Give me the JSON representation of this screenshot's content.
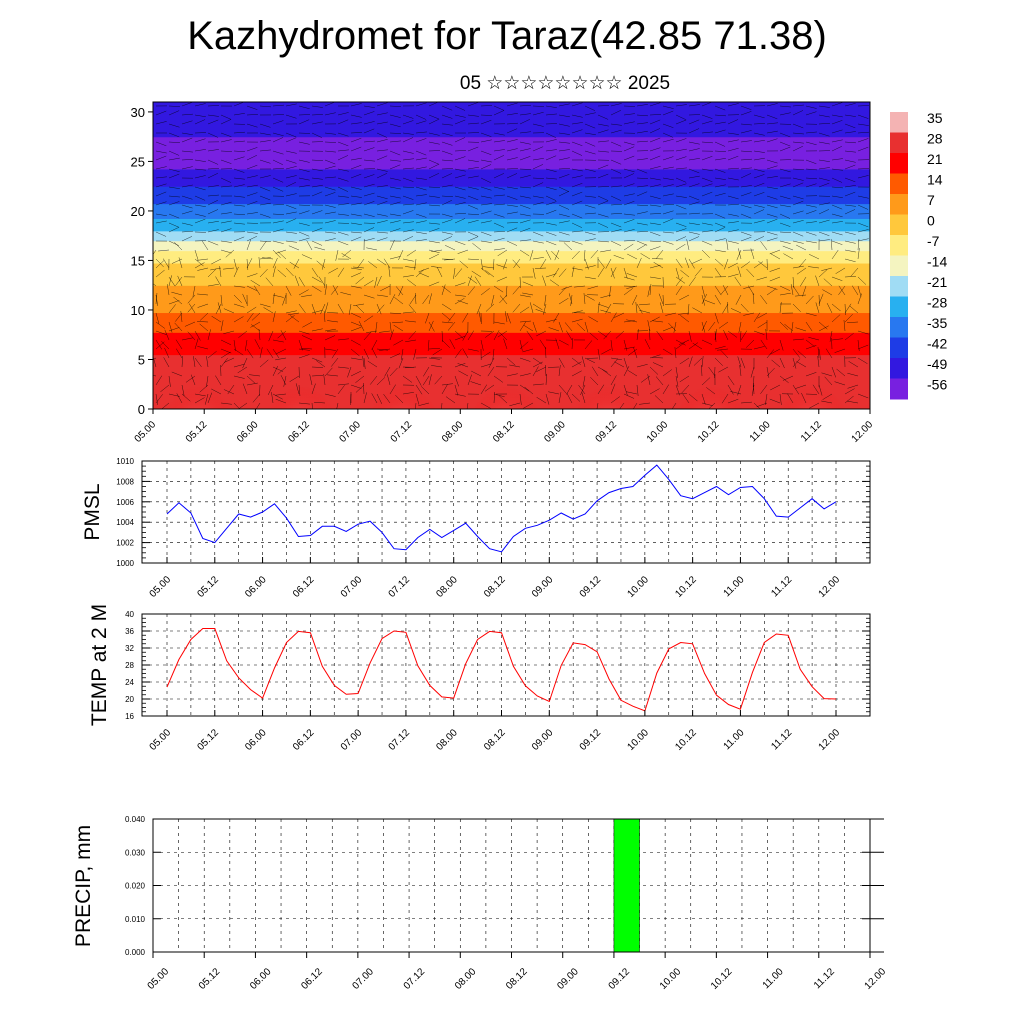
{
  "title": "Kazhydromet for Taraz(42.85 71.38)",
  "subtitle": "05 ☆☆☆☆☆☆☆☆ 2025",
  "time_labels": [
    "05.00",
    "05.12",
    "06.00",
    "06.12",
    "07.00",
    "07.12",
    "08.00",
    "08.12",
    "09.00",
    "09.12",
    "10.00",
    "10.12",
    "11.00",
    "11.12",
    "12.00"
  ],
  "colors": {
    "pmsl": "#0000ff",
    "temp": "#ff0000",
    "precip": "#00ff00"
  },
  "chart_data": [
    {
      "type": "heatmap",
      "title": "",
      "ylabel": "",
      "ylim": [
        0,
        31
      ],
      "yticks": [
        0,
        5,
        10,
        15,
        20,
        25,
        30
      ],
      "x": [
        "05.00",
        "05.12",
        "06.00",
        "06.12",
        "07.00",
        "07.12",
        "08.00",
        "08.12",
        "09.00",
        "09.12",
        "10.00",
        "10.12",
        "11.00",
        "11.12",
        "12.00"
      ],
      "colorbar": {
        "labels": [
          "35",
          "28",
          "21",
          "14",
          "7",
          "0",
          "-7",
          "-14",
          "-21",
          "-28",
          "-35",
          "-42",
          "-49",
          "-56"
        ],
        "colors": [
          "#f4b3b3",
          "#e83030",
          "#ff0000",
          "#ff5a00",
          "#ff9a1a",
          "#ffc83c",
          "#ffec80",
          "#f4f4c0",
          "#a0dcf4",
          "#28b0f0",
          "#2878f0",
          "#1e3ce6",
          "#3218e0",
          "#7820e0"
        ]
      },
      "isotherm_by_level": [
        {
          "level": 0,
          "value": 30
        },
        {
          "level": 5,
          "value": 26
        },
        {
          "level": 10,
          "value": 10
        },
        {
          "level": 14,
          "value": 0
        },
        {
          "level": 16,
          "value": -10
        },
        {
          "level": 18,
          "value": -25
        },
        {
          "level": 21,
          "value": -40
        },
        {
          "level": 25,
          "value": -56
        },
        {
          "level": 28,
          "value": -52
        },
        {
          "level": 31,
          "value": -50
        }
      ],
      "overlay": "wind barbs"
    },
    {
      "type": "line",
      "ylabel": "PMSL",
      "ylim": [
        1000,
        1010
      ],
      "yticks": [
        "1000",
        "1002",
        "1004",
        "1006",
        "1008",
        "1010"
      ],
      "x_start": 0,
      "x_step_hours": 3,
      "series": [
        {
          "values": [
            1004.8,
            1005.9,
            1004.9,
            1002.4,
            1002.0,
            1003.4,
            1004.8,
            1004.5,
            1005.0,
            1005.8,
            1004.4,
            1002.6,
            1002.7,
            1003.6,
            1003.6,
            1003.1,
            1003.8,
            1004.1,
            1003.0,
            1001.4,
            1001.3,
            1002.5,
            1003.3,
            1002.5,
            1003.2,
            1003.9,
            1002.6,
            1001.4,
            1001.1,
            1002.6,
            1003.4,
            1003.7,
            1004.2,
            1004.9,
            1004.3,
            1004.8,
            1006.1,
            1006.9,
            1007.3,
            1007.5,
            1008.6,
            1009.6,
            1008.2,
            1006.6,
            1006.3,
            1006.9,
            1007.5,
            1006.7,
            1007.4,
            1007.5,
            1006.3,
            1004.6,
            1004.5,
            1005.4,
            1006.3,
            1005.3,
            1006.0
          ]
        }
      ]
    },
    {
      "type": "line",
      "ylabel": "TEMP at 2 M",
      "ylim": [
        16,
        40
      ],
      "yticks": [
        "16",
        "20",
        "24",
        "28",
        "32",
        "36",
        "40"
      ],
      "x_start": 0,
      "x_step_hours": 3,
      "series": [
        {
          "values": [
            22.8,
            29.3,
            34.0,
            36.6,
            36.6,
            29.0,
            25.0,
            22.2,
            20.2,
            27.3,
            33.3,
            35.9,
            35.6,
            27.7,
            23.2,
            21.1,
            21.3,
            28.5,
            34.2,
            36.0,
            35.7,
            27.8,
            23.2,
            20.5,
            20.2,
            28.3,
            34.0,
            35.9,
            35.6,
            27.7,
            23.1,
            20.7,
            19.4,
            27.9,
            33.2,
            32.8,
            31.1,
            24.7,
            19.7,
            18.3,
            17.2,
            26.1,
            31.8,
            33.3,
            33.0,
            26.0,
            20.9,
            18.7,
            17.6,
            26.2,
            33.3,
            35.3,
            35.0,
            27.0,
            22.9,
            20.1,
            20.0
          ]
        }
      ]
    },
    {
      "type": "bar",
      "ylabel": "PRECIP, mm",
      "ylim": [
        0,
        0.04
      ],
      "yticks": [
        "0.000",
        "0.010",
        "0.020",
        "0.030",
        "0.040"
      ],
      "bars": [
        {
          "from_hour": 108,
          "to_hour": 114,
          "value": 0.04
        }
      ]
    }
  ]
}
